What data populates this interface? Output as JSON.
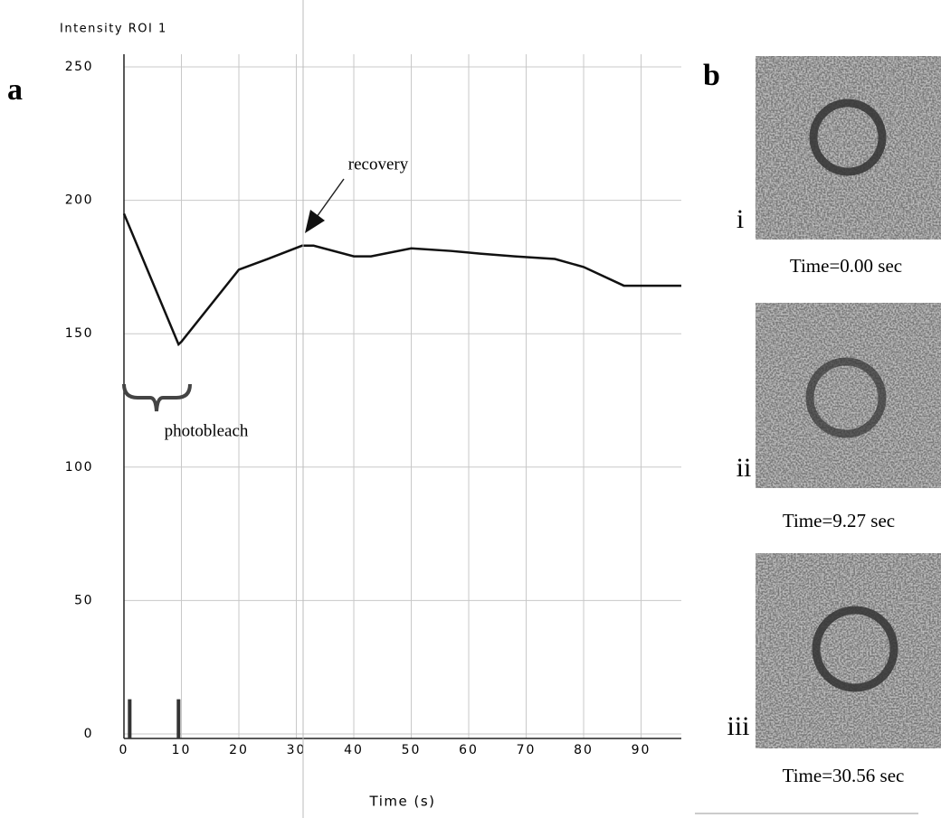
{
  "chart_data": {
    "type": "line",
    "title": "Intensity ROI 1",
    "x_label": "Time (s)",
    "xlim": [
      0,
      97
    ],
    "xticks": [
      0,
      10,
      20,
      30,
      40,
      50,
      60,
      70,
      80,
      90
    ],
    "ylim": [
      0,
      250
    ],
    "yticks": [
      0,
      50,
      100,
      150,
      200,
      250
    ],
    "grid": true,
    "series": [
      {
        "color": "#111111",
        "x": [
          0,
          9.5,
          10,
          20,
          25,
          31,
          33,
          40,
          43,
          50,
          57,
          62,
          68,
          75,
          80,
          87,
          97
        ],
        "values": [
          195,
          146,
          147,
          174,
          178,
          183,
          183,
          179,
          179,
          182,
          181,
          180,
          179,
          178,
          175,
          168,
          168
        ]
      }
    ],
    "events": {
      "x": [
        1,
        9.5
      ],
      "values": [
        13,
        13
      ],
      "color": "#333333"
    },
    "annotations": [
      "recovery",
      "photobleach"
    ]
  },
  "panel_labels": [
    "a",
    "b"
  ],
  "images": [
    {
      "numeral": "i",
      "caption": "Time=0.00 sec"
    },
    {
      "numeral": "ii",
      "caption": "Time=9.27 sec"
    },
    {
      "numeral": "iii",
      "caption": "Time=30.56 sec"
    }
  ]
}
